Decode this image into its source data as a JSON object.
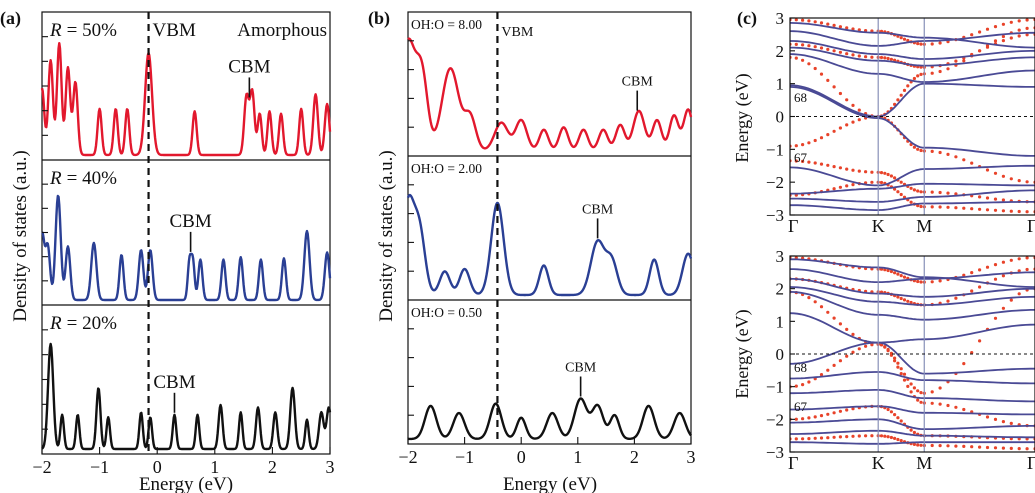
{
  "colors": {
    "red": "#e2182d",
    "blue": "#2a3f94",
    "black": "#111111",
    "band": "#4a4a95",
    "dots": "#e8432a",
    "fermi": "#111111"
  },
  "panel_a": {
    "label": "(a)",
    "x_label": "Energy (eV)",
    "y_label": "Density of states (a.u.)",
    "x_ticks": [
      "−2",
      "−1",
      "0",
      "1",
      "2",
      "3"
    ],
    "vbm_label": "VBM",
    "amorphous_label": "Amorphous",
    "subpanels": [
      {
        "r_prefix": "R",
        "r_value": "= 50%",
        "cbm": "CBM"
      },
      {
        "r_prefix": "R",
        "r_value": "= 40%",
        "cbm": "CBM"
      },
      {
        "r_prefix": "R",
        "r_value": "= 20%",
        "cbm": "CBM"
      }
    ]
  },
  "panel_b": {
    "label": "(b)",
    "x_label": "Energy (eV)",
    "y_label": "Density of states (a.u.)",
    "x_ticks": [
      "−2",
      "−1",
      "0",
      "1",
      "2",
      "3"
    ],
    "vbm_label": "VBM",
    "subpanels": [
      {
        "ratio": "OH:O = 8.00",
        "cbm": "CBM"
      },
      {
        "ratio": "OH:O = 2.00",
        "cbm": "CBM"
      },
      {
        "ratio": "OH:O = 0.50",
        "cbm": "CBM"
      }
    ]
  },
  "panel_c": {
    "label": "(c)",
    "y_label": "Energy (eV)",
    "k_labels": [
      "Γ",
      "K",
      "M",
      "Γ"
    ],
    "y_ticks": [
      "3",
      "2",
      "1",
      "0",
      "−1",
      "−2",
      "−3"
    ],
    "band_labels": [
      "68",
      "67"
    ]
  },
  "chart_data": [
    {
      "type": "line",
      "panel": "(a)",
      "xlabel": "Energy (eV)",
      "ylabel": "Density of states (a.u.)",
      "xlim": [
        -2,
        3
      ],
      "vbm_x": -0.15,
      "series": [
        {
          "name": "R = 50%",
          "cbm_x": 1.6,
          "peaks": [
            [
              -2.0,
              0.55,
              0.04
            ],
            [
              -1.85,
              0.78,
              0.04
            ],
            [
              -1.7,
              0.92,
              0.04
            ],
            [
              -1.55,
              0.72,
              0.04
            ],
            [
              -1.42,
              0.6,
              0.04
            ],
            [
              -1.0,
              0.38,
              0.035
            ],
            [
              -0.72,
              0.38,
              0.035
            ],
            [
              -0.52,
              0.38,
              0.035
            ],
            [
              -0.15,
              0.84,
              0.06
            ],
            [
              0.65,
              0.36,
              0.035
            ],
            [
              1.55,
              0.48,
              0.04
            ],
            [
              1.65,
              0.52,
              0.04
            ],
            [
              1.78,
              0.34,
              0.035
            ],
            [
              1.95,
              0.36,
              0.035
            ],
            [
              2.15,
              0.34,
              0.035
            ],
            [
              2.5,
              0.38,
              0.035
            ],
            [
              2.75,
              0.5,
              0.04
            ],
            [
              2.95,
              0.42,
              0.04
            ]
          ]
        },
        {
          "name": "R = 40%",
          "cbm_x": 0.58,
          "peaks": [
            [
              -2.0,
              0.55,
              0.04
            ],
            [
              -1.9,
              0.45,
              0.04
            ],
            [
              -1.72,
              0.88,
              0.045
            ],
            [
              -1.55,
              0.45,
              0.04
            ],
            [
              -1.1,
              0.48,
              0.045
            ],
            [
              -0.62,
              0.38,
              0.035
            ],
            [
              -0.28,
              0.42,
              0.04
            ],
            [
              -0.12,
              0.42,
              0.04
            ],
            [
              0.56,
              0.32,
              0.03
            ],
            [
              0.62,
              0.32,
              0.03
            ],
            [
              0.75,
              0.34,
              0.035
            ],
            [
              1.15,
              0.34,
              0.035
            ],
            [
              1.45,
              0.36,
              0.035
            ],
            [
              1.8,
              0.34,
              0.035
            ],
            [
              2.2,
              0.35,
              0.035
            ],
            [
              2.6,
              0.58,
              0.045
            ],
            [
              2.95,
              0.4,
              0.04
            ]
          ]
        },
        {
          "name": "R = 20%",
          "cbm_x": 0.3,
          "peaks": [
            [
              -1.85,
              0.86,
              0.045
            ],
            [
              -1.65,
              0.28,
              0.03
            ],
            [
              -1.38,
              0.28,
              0.03
            ],
            [
              -1.02,
              0.5,
              0.035
            ],
            [
              -0.85,
              0.26,
              0.03
            ],
            [
              -0.28,
              0.3,
              0.03
            ],
            [
              -0.12,
              0.26,
              0.03
            ],
            [
              0.3,
              0.28,
              0.03
            ],
            [
              0.7,
              0.28,
              0.03
            ],
            [
              1.1,
              0.36,
              0.035
            ],
            [
              1.45,
              0.3,
              0.03
            ],
            [
              1.75,
              0.34,
              0.035
            ],
            [
              2.05,
              0.3,
              0.035
            ],
            [
              2.35,
              0.5,
              0.04
            ],
            [
              2.6,
              0.24,
              0.03
            ],
            [
              2.85,
              0.3,
              0.04
            ],
            [
              2.98,
              0.34,
              0.04
            ]
          ]
        }
      ]
    },
    {
      "type": "line",
      "panel": "(b)",
      "xlabel": "Energy (eV)",
      "ylabel": "Density of states (a.u.)",
      "xlim": [
        -2,
        3
      ],
      "vbm_x": -0.42,
      "series": [
        {
          "name": "OH:O = 8.00",
          "cbm_x": 2.05,
          "peaks": [
            [
              -2.0,
              0.92,
              0.13
            ],
            [
              -1.75,
              0.6,
              0.1
            ],
            [
              -1.25,
              0.7,
              0.15
            ],
            [
              -0.9,
              0.28,
              0.1
            ],
            [
              -0.35,
              0.24,
              0.12
            ],
            [
              0.0,
              0.26,
              0.1
            ],
            [
              0.4,
              0.18,
              0.08
            ],
            [
              0.75,
              0.2,
              0.08
            ],
            [
              1.1,
              0.18,
              0.08
            ],
            [
              1.45,
              0.18,
              0.08
            ],
            [
              1.75,
              0.22,
              0.08
            ],
            [
              2.08,
              0.34,
              0.1
            ],
            [
              2.4,
              0.26,
              0.08
            ],
            [
              2.7,
              0.3,
              0.08
            ],
            [
              2.95,
              0.35,
              0.08
            ]
          ]
        },
        {
          "name": "OH:O = 2.00",
          "cbm_x": 1.35,
          "peaks": [
            [
              -2.0,
              0.75,
              0.1
            ],
            [
              -1.8,
              0.55,
              0.1
            ],
            [
              -1.35,
              0.2,
              0.09
            ],
            [
              -1.0,
              0.22,
              0.09
            ],
            [
              -0.42,
              0.78,
              0.11
            ],
            [
              0.4,
              0.25,
              0.08
            ],
            [
              1.35,
              0.45,
              0.12
            ],
            [
              1.6,
              0.28,
              0.1
            ],
            [
              2.35,
              0.3,
              0.08
            ],
            [
              2.95,
              0.35,
              0.1
            ]
          ]
        },
        {
          "name": "OH:O = 0.50",
          "cbm_x": 1.05,
          "peaks": [
            [
              -1.6,
              0.28,
              0.1
            ],
            [
              -1.1,
              0.22,
              0.1
            ],
            [
              -0.45,
              0.3,
              0.1
            ],
            [
              0.0,
              0.18,
              0.08
            ],
            [
              0.55,
              0.22,
              0.1
            ],
            [
              1.05,
              0.34,
              0.11
            ],
            [
              1.35,
              0.28,
              0.1
            ],
            [
              1.65,
              0.2,
              0.08
            ],
            [
              2.25,
              0.28,
              0.1
            ],
            [
              2.8,
              0.22,
              0.1
            ]
          ]
        }
      ]
    },
    {
      "type": "line",
      "panel": "(c)",
      "ylabel": "Energy (eV)",
      "ylim": [
        -3,
        3
      ],
      "k_path": [
        "Γ",
        "K",
        "M",
        "Γ"
      ],
      "series": [
        {
          "name": "top",
          "bands": [
            [
              2.85,
              2.55,
              2.4,
              2.1
            ],
            [
              2.6,
              2.15,
              2.3,
              2.55
            ],
            [
              2.3,
              1.9,
              1.75,
              2.0
            ],
            [
              2.1,
              1.7,
              1.55,
              1.8
            ],
            [
              1.9,
              1.3,
              1.05,
              1.4
            ],
            [
              0.95,
              0.0,
              1.0,
              0.9
            ],
            [
              0.9,
              -0.05,
              -0.95,
              -1.2
            ],
            [
              -1.55,
              -2.1,
              -1.6,
              -1.5
            ],
            [
              -2.35,
              -2.2,
              -2.05,
              -2.1
            ],
            [
              -2.5,
              -2.6,
              -2.45,
              -2.25
            ],
            [
              -2.7,
              -2.85,
              -2.65,
              -2.6
            ]
          ],
          "dot_bands": [
            [
              2.95,
              2.6,
              2.2,
              2.95
            ],
            [
              2.2,
              1.8,
              1.5,
              2.5
            ],
            [
              1.8,
              0.0,
              1.3,
              2.7
            ],
            [
              -0.9,
              0.0,
              -1.05,
              -2.0
            ],
            [
              -1.35,
              -1.7,
              -2.3,
              -2.6
            ],
            [
              -2.4,
              -2.0,
              -2.75,
              -2.9
            ]
          ]
        },
        {
          "name": "bottom",
          "bands": [
            [
              2.9,
              2.65,
              2.35,
              2.05
            ],
            [
              2.6,
              2.2,
              2.3,
              2.5
            ],
            [
              2.3,
              1.85,
              1.75,
              2.0
            ],
            [
              2.05,
              1.6,
              1.5,
              1.75
            ],
            [
              1.9,
              1.2,
              1.05,
              1.35
            ],
            [
              1.25,
              0.35,
              0.45,
              0.9
            ],
            [
              -0.3,
              0.35,
              -0.6,
              -0.45
            ],
            [
              -0.75,
              -0.55,
              -0.8,
              -0.9
            ],
            [
              -1.2,
              -1.1,
              -1.35,
              -1.45
            ],
            [
              -1.7,
              -1.6,
              -1.8,
              -1.85
            ],
            [
              -2.1,
              -2.0,
              -2.3,
              -2.2
            ],
            [
              -2.45,
              -2.35,
              -2.5,
              -2.55
            ],
            [
              -2.7,
              -2.75,
              -2.7,
              -2.7
            ]
          ],
          "dot_bands": [
            [
              2.95,
              2.6,
              2.2,
              2.95
            ],
            [
              2.3,
              1.9,
              1.5,
              2.6
            ],
            [
              1.9,
              0.3,
              -1.2,
              2.0
            ],
            [
              -1.0,
              0.3,
              -1.5,
              -2.2
            ],
            [
              -2.0,
              -1.6,
              -2.5,
              -2.6
            ],
            [
              -2.6,
              -2.5,
              -2.8,
              -2.9
            ]
          ]
        }
      ]
    }
  ]
}
